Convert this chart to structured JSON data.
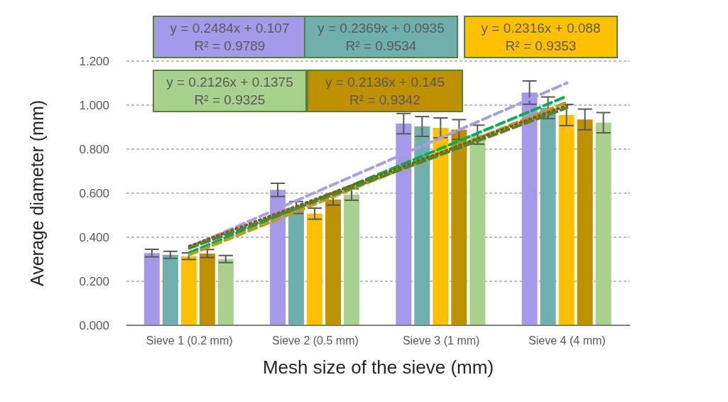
{
  "chart_data": {
    "type": "bar",
    "xlabel": "Mesh size of the sieve (mm)",
    "ylabel": "Average diameter (mm)",
    "categories": [
      "Sieve 1 (0.2 mm)",
      "Sieve 2 (0.5 mm)",
      "Sieve 3 (1 mm)",
      "Sieve 4 (4 mm)"
    ],
    "ylim": [
      0,
      1.2
    ],
    "yticks": [
      {
        "value": 0,
        "label": "0.000"
      },
      {
        "value": 0.2,
        "label": "0.200"
      },
      {
        "value": 0.4,
        "label": "0.400"
      },
      {
        "value": 0.6,
        "label": "0.600"
      },
      {
        "value": 0.8,
        "label": "0.800"
      },
      {
        "value": 1.0,
        "label": "1.000"
      },
      {
        "value": 1.2,
        "label": "1.200"
      }
    ],
    "grid": "y",
    "legend": false,
    "series": [
      {
        "color": "#a599ea",
        "values": [
          0.328,
          0.615,
          0.916,
          1.057
        ],
        "errors": [
          0.017,
          0.03,
          0.046,
          0.053
        ]
      },
      {
        "color": "#6fb0ae",
        "values": [
          0.32,
          0.535,
          0.903,
          0.988
        ],
        "errors": [
          0.016,
          0.027,
          0.045,
          0.049
        ]
      },
      {
        "color": "#ffc000",
        "values": [
          0.314,
          0.507,
          0.897,
          0.955
        ],
        "errors": [
          0.015,
          0.025,
          0.045,
          0.048
        ]
      },
      {
        "color": "#bf9000",
        "values": [
          0.326,
          0.571,
          0.889,
          0.935
        ],
        "errors": [
          0.018,
          0.025,
          0.045,
          0.047
        ]
      },
      {
        "color": "#a9d18e",
        "values": [
          0.301,
          0.594,
          0.866,
          0.92
        ],
        "errors": [
          0.016,
          0.026,
          0.043,
          0.046
        ]
      },
      {
        "type": "line",
        "line_style": "dashed",
        "color": "#a99ceb",
        "x": [
          "Sieve 1 (0.2 mm)",
          "Sieve 4 (4 mm)"
        ],
        "values": [
          0.355,
          1.101
        ]
      },
      {
        "type": "line",
        "line_style": "dashed",
        "color": "#00b050",
        "x": [
          "Sieve 1 (0.2 mm)",
          "Sieve 4 (4 mm)"
        ],
        "values": [
          0.33,
          1.041
        ]
      },
      {
        "type": "line",
        "line_style": "dashed",
        "color": "#c9961a",
        "x": [
          "Sieve 1 (0.2 mm)",
          "Sieve 4 (4 mm)"
        ],
        "values": [
          0.32,
          1.014
        ]
      },
      {
        "type": "line",
        "line_style": "dotted",
        "color": "#7f6000",
        "x": [
          "Sieve 1 (0.2 mm)",
          "Sieve 4 (4 mm)"
        ],
        "values": [
          0.359,
          0.999
        ]
      },
      {
        "type": "line",
        "line_style": "dashed",
        "color": "#548235",
        "x": [
          "Sieve 1 (0.2 mm)",
          "Sieve 4 (4 mm)"
        ],
        "values": [
          0.35,
          0.988
        ]
      }
    ],
    "annotations": [
      "y = 0.2484x + 0.107\nR² = 0.9789",
      "y = 0.2369x + 0.0935\nR² = 0.9534",
      "y = 0.2316x + 0.088\nR² = 0.9353",
      "y = 0.2136x + 0.145\nR² = 0.9342",
      "y = 0.2126x + 0.1375\nR² = 0.9325"
    ]
  }
}
